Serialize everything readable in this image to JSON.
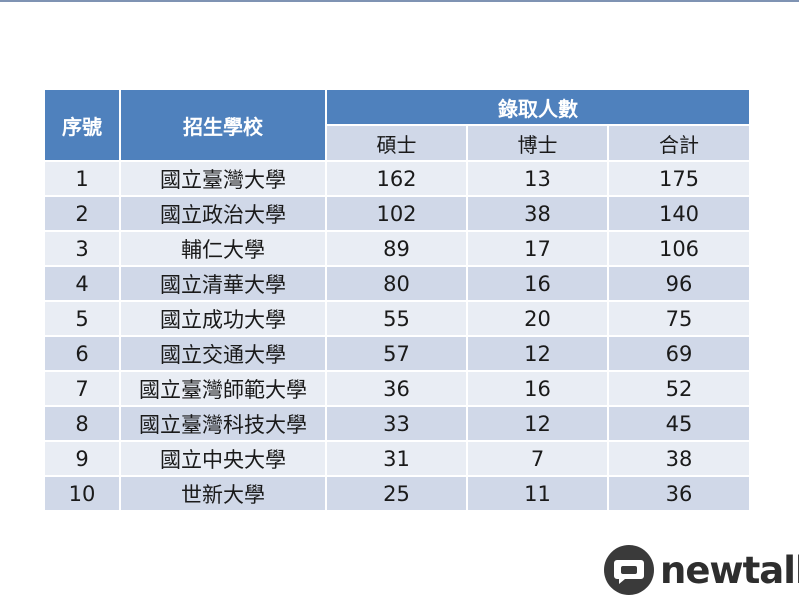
{
  "table": {
    "headers": {
      "no": "序號",
      "school": "招生學校",
      "admitted": "錄取人數",
      "masters": "碩士",
      "doctoral": "博士",
      "total": "合計"
    },
    "rows": [
      {
        "no": "1",
        "school": "國立臺灣大學",
        "masters": "162",
        "doctoral": "13",
        "total": "175"
      },
      {
        "no": "2",
        "school": "國立政治大學",
        "masters": "102",
        "doctoral": "38",
        "total": "140"
      },
      {
        "no": "3",
        "school": "輔仁大學",
        "masters": "89",
        "doctoral": "17",
        "total": "106"
      },
      {
        "no": "4",
        "school": "國立清華大學",
        "masters": "80",
        "doctoral": "16",
        "total": "96"
      },
      {
        "no": "5",
        "school": "國立成功大學",
        "masters": "55",
        "doctoral": "20",
        "total": "75"
      },
      {
        "no": "6",
        "school": "國立交通大學",
        "masters": "57",
        "doctoral": "12",
        "total": "69"
      },
      {
        "no": "7",
        "school": "國立臺灣師範大學",
        "masters": "36",
        "doctoral": "16",
        "total": "52"
      },
      {
        "no": "8",
        "school": "國立臺灣科技大學",
        "masters": "33",
        "doctoral": "12",
        "total": "45"
      },
      {
        "no": "9",
        "school": "國立中央大學",
        "masters": "31",
        "doctoral": "7",
        "total": "38"
      },
      {
        "no": "10",
        "school": "世新大學",
        "masters": "25",
        "doctoral": "11",
        "total": "36"
      }
    ]
  },
  "logo": {
    "text": "newtalk",
    "icon": "newtalk-speech-bubble-icon"
  },
  "colors": {
    "header_blue": "#4f81bd",
    "row_light": "#e9edf4",
    "row_dark": "#d0d8e8"
  }
}
